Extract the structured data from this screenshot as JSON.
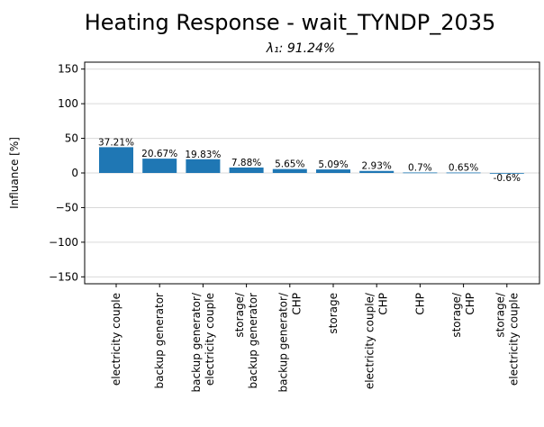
{
  "chart_data": {
    "type": "bar",
    "title": "Heating Response - wait_TYNDP_2035",
    "subtitle": "λ₁: 91.24%",
    "ylabel": "Influance [%]",
    "xlabel": "",
    "ylim": [
      -160,
      160
    ],
    "yticks": [
      -150,
      -100,
      -50,
      0,
      50,
      100,
      150
    ],
    "ytick_labels": [
      "−150",
      "−100",
      "−50",
      "0",
      "50",
      "100",
      "150"
    ],
    "grid": "horizontal",
    "bar_color": "#1f77b4",
    "categories": [
      [
        "electricity couple"
      ],
      [
        "backup generator"
      ],
      [
        "backup generator/",
        "electricity couple"
      ],
      [
        "storage/",
        "backup generator"
      ],
      [
        "backup generator/",
        "CHP"
      ],
      [
        "storage"
      ],
      [
        "electricity couple/",
        "CHP"
      ],
      [
        "CHP"
      ],
      [
        "storage/",
        "CHP"
      ],
      [
        "storage/",
        "electricity couple"
      ]
    ],
    "values": [
      37.21,
      20.67,
      19.83,
      7.88,
      5.65,
      5.09,
      2.93,
      0.7,
      0.65,
      -0.6
    ],
    "value_labels": [
      "37.21%",
      "20.67%",
      "19.83%",
      "7.88%",
      "5.65%",
      "5.09%",
      "2.93%",
      "0.7%",
      "0.65%",
      "-0.6%"
    ]
  }
}
